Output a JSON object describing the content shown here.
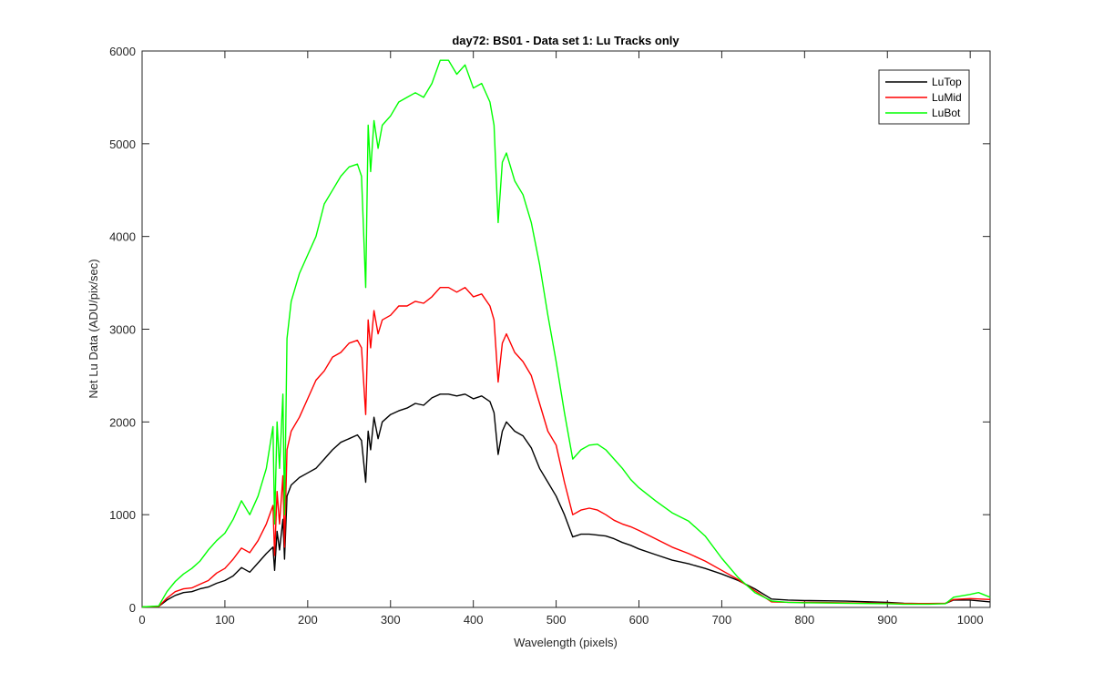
{
  "chart_data": {
    "type": "line",
    "title": "day72: BS01 - Data set 1: Lu Tracks only",
    "xlabel": "Wavelength (pixels)",
    "ylabel": "Net Lu Data (ADU/pix/sec)",
    "xlim": [
      0,
      1024
    ],
    "ylim": [
      0,
      6000
    ],
    "xticks": [
      0,
      100,
      200,
      300,
      400,
      500,
      600,
      700,
      800,
      900,
      1000
    ],
    "yticks": [
      0,
      1000,
      2000,
      3000,
      4000,
      5000,
      6000
    ],
    "grid": false,
    "legend_position": "top-right",
    "series": [
      {
        "name": "LuTop",
        "color": "#000000",
        "points": [
          [
            0,
            5
          ],
          [
            20,
            10
          ],
          [
            30,
            80
          ],
          [
            40,
            130
          ],
          [
            50,
            160
          ],
          [
            60,
            170
          ],
          [
            70,
            200
          ],
          [
            80,
            220
          ],
          [
            90,
            260
          ],
          [
            100,
            290
          ],
          [
            110,
            340
          ],
          [
            120,
            430
          ],
          [
            130,
            380
          ],
          [
            140,
            480
          ],
          [
            150,
            580
          ],
          [
            158,
            650
          ],
          [
            160,
            400
          ],
          [
            163,
            820
          ],
          [
            166,
            620
          ],
          [
            170,
            950
          ],
          [
            172,
            520
          ],
          [
            175,
            1200
          ],
          [
            180,
            1320
          ],
          [
            190,
            1400
          ],
          [
            200,
            1450
          ],
          [
            210,
            1500
          ],
          [
            220,
            1600
          ],
          [
            230,
            1700
          ],
          [
            240,
            1780
          ],
          [
            250,
            1820
          ],
          [
            260,
            1860
          ],
          [
            265,
            1800
          ],
          [
            270,
            1350
          ],
          [
            273,
            1900
          ],
          [
            276,
            1700
          ],
          [
            280,
            2050
          ],
          [
            285,
            1820
          ],
          [
            290,
            2000
          ],
          [
            300,
            2080
          ],
          [
            310,
            2120
          ],
          [
            320,
            2150
          ],
          [
            330,
            2200
          ],
          [
            340,
            2180
          ],
          [
            350,
            2260
          ],
          [
            360,
            2300
          ],
          [
            370,
            2300
          ],
          [
            380,
            2280
          ],
          [
            390,
            2300
          ],
          [
            400,
            2250
          ],
          [
            410,
            2280
          ],
          [
            420,
            2220
          ],
          [
            425,
            2100
          ],
          [
            430,
            1650
          ],
          [
            435,
            1900
          ],
          [
            440,
            2000
          ],
          [
            450,
            1900
          ],
          [
            460,
            1850
          ],
          [
            470,
            1720
          ],
          [
            480,
            1500
          ],
          [
            490,
            1350
          ],
          [
            500,
            1200
          ],
          [
            510,
            1000
          ],
          [
            520,
            760
          ],
          [
            530,
            790
          ],
          [
            540,
            790
          ],
          [
            550,
            780
          ],
          [
            560,
            770
          ],
          [
            570,
            740
          ],
          [
            580,
            700
          ],
          [
            590,
            670
          ],
          [
            600,
            630
          ],
          [
            620,
            570
          ],
          [
            640,
            510
          ],
          [
            660,
            470
          ],
          [
            680,
            420
          ],
          [
            700,
            360
          ],
          [
            720,
            290
          ],
          [
            740,
            200
          ],
          [
            760,
            90
          ],
          [
            780,
            80
          ],
          [
            800,
            75
          ],
          [
            850,
            68
          ],
          [
            900,
            55
          ],
          [
            920,
            45
          ],
          [
            950,
            40
          ],
          [
            970,
            42
          ],
          [
            980,
            80
          ],
          [
            1000,
            80
          ],
          [
            1024,
            60
          ]
        ]
      },
      {
        "name": "LuMid",
        "color": "#ff0000",
        "points": [
          [
            0,
            5
          ],
          [
            20,
            10
          ],
          [
            30,
            100
          ],
          [
            40,
            170
          ],
          [
            50,
            200
          ],
          [
            60,
            210
          ],
          [
            70,
            250
          ],
          [
            80,
            290
          ],
          [
            90,
            370
          ],
          [
            100,
            420
          ],
          [
            110,
            520
          ],
          [
            120,
            640
          ],
          [
            130,
            590
          ],
          [
            140,
            720
          ],
          [
            150,
            900
          ],
          [
            158,
            1100
          ],
          [
            160,
            560
          ],
          [
            163,
            1250
          ],
          [
            166,
            900
          ],
          [
            170,
            1420
          ],
          [
            172,
            650
          ],
          [
            175,
            1700
          ],
          [
            180,
            1900
          ],
          [
            190,
            2050
          ],
          [
            200,
            2250
          ],
          [
            210,
            2450
          ],
          [
            220,
            2550
          ],
          [
            230,
            2700
          ],
          [
            240,
            2750
          ],
          [
            250,
            2850
          ],
          [
            260,
            2880
          ],
          [
            265,
            2800
          ],
          [
            270,
            2080
          ],
          [
            273,
            3100
          ],
          [
            276,
            2800
          ],
          [
            280,
            3200
          ],
          [
            285,
            2950
          ],
          [
            290,
            3100
          ],
          [
            300,
            3150
          ],
          [
            310,
            3250
          ],
          [
            320,
            3250
          ],
          [
            330,
            3300
          ],
          [
            340,
            3280
          ],
          [
            350,
            3350
          ],
          [
            360,
            3450
          ],
          [
            370,
            3450
          ],
          [
            380,
            3400
          ],
          [
            390,
            3450
          ],
          [
            400,
            3350
          ],
          [
            410,
            3380
          ],
          [
            420,
            3250
          ],
          [
            425,
            3100
          ],
          [
            430,
            2430
          ],
          [
            435,
            2850
          ],
          [
            440,
            2950
          ],
          [
            450,
            2750
          ],
          [
            460,
            2650
          ],
          [
            470,
            2500
          ],
          [
            480,
            2200
          ],
          [
            490,
            1900
          ],
          [
            500,
            1750
          ],
          [
            510,
            1350
          ],
          [
            520,
            1000
          ],
          [
            530,
            1050
          ],
          [
            540,
            1070
          ],
          [
            550,
            1050
          ],
          [
            560,
            1000
          ],
          [
            570,
            940
          ],
          [
            580,
            900
          ],
          [
            590,
            870
          ],
          [
            600,
            830
          ],
          [
            620,
            740
          ],
          [
            640,
            650
          ],
          [
            660,
            580
          ],
          [
            680,
            500
          ],
          [
            700,
            400
          ],
          [
            720,
            300
          ],
          [
            740,
            180
          ],
          [
            760,
            60
          ],
          [
            780,
            55
          ],
          [
            800,
            55
          ],
          [
            850,
            50
          ],
          [
            900,
            45
          ],
          [
            920,
            42
          ],
          [
            950,
            42
          ],
          [
            970,
            45
          ],
          [
            980,
            85
          ],
          [
            1000,
            95
          ],
          [
            1024,
            85
          ]
        ]
      },
      {
        "name": "LuBot",
        "color": "#00ff00",
        "points": [
          [
            0,
            5
          ],
          [
            20,
            15
          ],
          [
            30,
            170
          ],
          [
            40,
            280
          ],
          [
            50,
            360
          ],
          [
            60,
            420
          ],
          [
            70,
            500
          ],
          [
            80,
            620
          ],
          [
            90,
            720
          ],
          [
            100,
            800
          ],
          [
            110,
            950
          ],
          [
            120,
            1150
          ],
          [
            130,
            1000
          ],
          [
            140,
            1200
          ],
          [
            150,
            1500
          ],
          [
            158,
            1950
          ],
          [
            160,
            900
          ],
          [
            163,
            2000
          ],
          [
            166,
            1500
          ],
          [
            170,
            2300
          ],
          [
            172,
            1000
          ],
          [
            175,
            2900
          ],
          [
            180,
            3300
          ],
          [
            190,
            3600
          ],
          [
            200,
            3800
          ],
          [
            210,
            4000
          ],
          [
            220,
            4350
          ],
          [
            230,
            4500
          ],
          [
            240,
            4650
          ],
          [
            250,
            4750
          ],
          [
            260,
            4780
          ],
          [
            265,
            4650
          ],
          [
            270,
            3450
          ],
          [
            273,
            5200
          ],
          [
            276,
            4700
          ],
          [
            280,
            5250
          ],
          [
            285,
            4950
          ],
          [
            290,
            5200
          ],
          [
            300,
            5300
          ],
          [
            310,
            5450
          ],
          [
            320,
            5500
          ],
          [
            330,
            5550
          ],
          [
            340,
            5500
          ],
          [
            350,
            5650
          ],
          [
            360,
            5900
          ],
          [
            370,
            5900
          ],
          [
            380,
            5750
          ],
          [
            390,
            5850
          ],
          [
            400,
            5600
          ],
          [
            410,
            5650
          ],
          [
            420,
            5450
          ],
          [
            425,
            5200
          ],
          [
            430,
            4150
          ],
          [
            435,
            4800
          ],
          [
            440,
            4900
          ],
          [
            450,
            4600
          ],
          [
            460,
            4450
          ],
          [
            470,
            4150
          ],
          [
            480,
            3700
          ],
          [
            490,
            3150
          ],
          [
            500,
            2650
          ],
          [
            510,
            2100
          ],
          [
            520,
            1600
          ],
          [
            530,
            1700
          ],
          [
            540,
            1750
          ],
          [
            550,
            1760
          ],
          [
            560,
            1700
          ],
          [
            570,
            1600
          ],
          [
            580,
            1500
          ],
          [
            590,
            1380
          ],
          [
            600,
            1290
          ],
          [
            620,
            1150
          ],
          [
            640,
            1020
          ],
          [
            660,
            930
          ],
          [
            680,
            770
          ],
          [
            700,
            530
          ],
          [
            720,
            320
          ],
          [
            740,
            160
          ],
          [
            760,
            70
          ],
          [
            780,
            55
          ],
          [
            800,
            50
          ],
          [
            850,
            45
          ],
          [
            900,
            40
          ],
          [
            920,
            35
          ],
          [
            950,
            35
          ],
          [
            970,
            40
          ],
          [
            980,
            110
          ],
          [
            1000,
            140
          ],
          [
            1010,
            160
          ],
          [
            1024,
            110
          ]
        ]
      }
    ]
  }
}
